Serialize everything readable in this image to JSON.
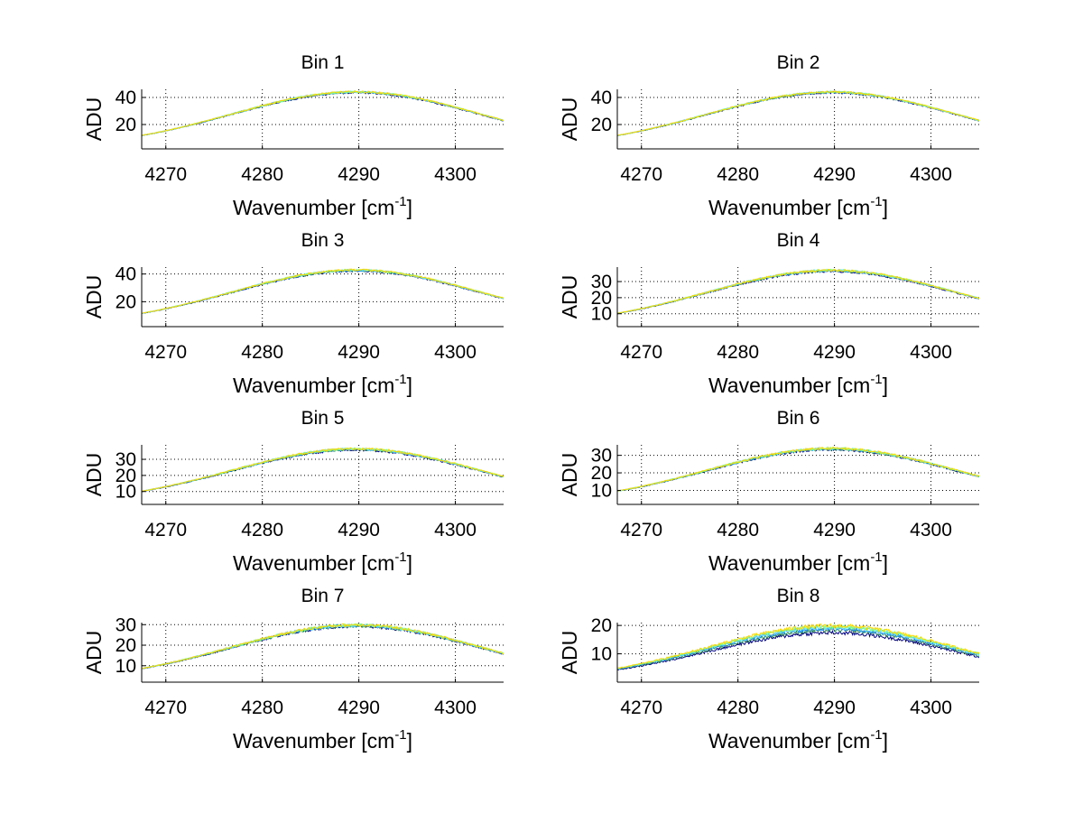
{
  "figure": {
    "background": "#ffffff",
    "series_colors": [
      "#00007f",
      "#2e8b57",
      "#1e90ff",
      "#66e0ff",
      "#7fff7f",
      "#ffd700"
    ]
  },
  "chart_data": [
    {
      "type": "line",
      "title": "Bin 1",
      "xlabel": "Wavenumber [cm",
      "xlabel_sup": "-1",
      "xlabel_end": "]",
      "ylabel": "ADU",
      "xlim": [
        4267.5,
        4305
      ],
      "ylim": [
        2,
        46
      ],
      "xticks": [
        4270,
        4280,
        4290,
        4300
      ],
      "yticks": [
        20,
        40
      ],
      "grid": true,
      "peak_x": 4289.7,
      "sigma": 12.9,
      "series_peaks": [
        43.5,
        43.8,
        44.0,
        44.1,
        44.1,
        44.2
      ],
      "baseline": 2.5
    },
    {
      "type": "line",
      "title": "Bin 2",
      "xlabel": "Wavenumber [cm",
      "xlabel_sup": "-1",
      "xlabel_end": "]",
      "ylabel": "ADU",
      "xlim": [
        4267.5,
        4305
      ],
      "ylim": [
        2,
        46
      ],
      "xticks": [
        4270,
        4280,
        4290,
        4300
      ],
      "yticks": [
        20,
        40
      ],
      "grid": true,
      "peak_x": 4289.7,
      "sigma": 12.9,
      "series_peaks": [
        43.4,
        43.7,
        43.9,
        44.0,
        44.0,
        44.1
      ],
      "baseline": 2.5
    },
    {
      "type": "line",
      "title": "Bin 3",
      "xlabel": "Wavenumber [cm",
      "xlabel_sup": "-1",
      "xlabel_end": "]",
      "ylabel": "ADU",
      "xlim": [
        4267.5,
        4305
      ],
      "ylim": [
        2,
        45
      ],
      "xticks": [
        4270,
        4280,
        4290,
        4300
      ],
      "yticks": [
        20,
        40
      ],
      "grid": true,
      "peak_x": 4289.7,
      "sigma": 12.9,
      "series_peaks": [
        42.2,
        42.5,
        42.7,
        42.8,
        42.9,
        43.0
      ],
      "baseline": 2.5
    },
    {
      "type": "line",
      "title": "Bin 4",
      "xlabel": "Wavenumber [cm",
      "xlabel_sup": "-1",
      "xlabel_end": "]",
      "ylabel": "ADU",
      "xlim": [
        4267.5,
        4305
      ],
      "ylim": [
        2,
        39
      ],
      "xticks": [
        4270,
        4280,
        4290,
        4300
      ],
      "yticks": [
        10,
        20,
        30
      ],
      "grid": true,
      "peak_x": 4289.7,
      "sigma": 12.9,
      "series_peaks": [
        36.3,
        36.6,
        36.8,
        36.9,
        37.0,
        37.0
      ],
      "baseline": 2.5
    },
    {
      "type": "line",
      "title": "Bin 5",
      "xlabel": "Wavenumber [cm",
      "xlabel_sup": "-1",
      "xlabel_end": "]",
      "ylabel": "ADU",
      "xlim": [
        4267.5,
        4305
      ],
      "ylim": [
        2,
        39
      ],
      "xticks": [
        4270,
        4280,
        4290,
        4300
      ],
      "yticks": [
        10,
        20,
        30
      ],
      "grid": true,
      "peak_x": 4289.7,
      "sigma": 12.9,
      "series_peaks": [
        35.8,
        36.1,
        36.3,
        36.4,
        36.5,
        36.6
      ],
      "baseline": 2.5
    },
    {
      "type": "line",
      "title": "Bin 6",
      "xlabel": "Wavenumber [cm",
      "xlabel_sup": "-1",
      "xlabel_end": "]",
      "ylabel": "ADU",
      "xlim": [
        4267.5,
        4305
      ],
      "ylim": [
        2,
        36
      ],
      "xticks": [
        4270,
        4280,
        4290,
        4300
      ],
      "yticks": [
        10,
        20,
        30
      ],
      "grid": true,
      "peak_x": 4289.7,
      "sigma": 12.9,
      "series_peaks": [
        33.3,
        33.5,
        33.7,
        33.8,
        33.9,
        34.0
      ],
      "baseline": 2.5
    },
    {
      "type": "line",
      "title": "Bin 7",
      "xlabel": "Wavenumber [cm",
      "xlabel_sup": "-1",
      "xlabel_end": "]",
      "ylabel": "ADU",
      "xlim": [
        4267.5,
        4305
      ],
      "ylim": [
        2,
        31
      ],
      "xticks": [
        4270,
        4280,
        4290,
        4300
      ],
      "yticks": [
        10,
        20,
        30
      ],
      "grid": true,
      "peak_x": 4289.7,
      "sigma": 12.9,
      "series_peaks": [
        29.2,
        29.4,
        29.6,
        29.7,
        29.8,
        29.9
      ],
      "baseline": 2.5
    },
    {
      "type": "line",
      "title": "Bin 8",
      "xlabel": "Wavenumber [cm",
      "xlabel_sup": "-1",
      "xlabel_end": "]",
      "ylabel": "ADU",
      "xlim": [
        4267.5,
        4305
      ],
      "ylim": [
        0,
        21
      ],
      "xticks": [
        4270,
        4280,
        4290,
        4300
      ],
      "yticks": [
        10,
        20
      ],
      "grid": true,
      "peak_x": 4289.7,
      "sigma": 12.9,
      "series_peaks": [
        17.4,
        18.3,
        18.9,
        19.3,
        19.6,
        19.9
      ],
      "baseline": 0.5
    }
  ]
}
